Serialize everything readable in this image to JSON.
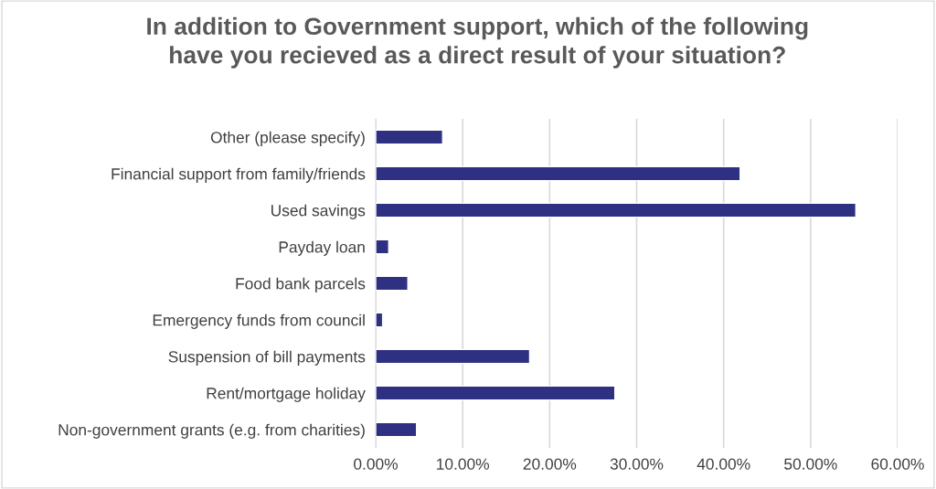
{
  "chart_data": {
    "type": "bar",
    "orientation": "horizontal",
    "title": "In addition to Government support, which of the following\nhave you recieved as a direct result of your situation?",
    "categories": [
      "Other (please specify)",
      "Financial support from family/friends",
      "Used savings",
      "Payday loan",
      "Food bank parcels",
      "Emergency funds from council",
      "Suspension of bill payments",
      "Rent/mortgage holiday",
      "Non-government grants (e.g. from charities)"
    ],
    "values": [
      7.7,
      41.9,
      55.2,
      1.5,
      3.7,
      0.8,
      17.7,
      27.5,
      4.7
    ],
    "color": "#2e3081",
    "xlim": [
      0,
      60
    ],
    "xticks": [
      {
        "value": 0,
        "label": "0.00%"
      },
      {
        "value": 10,
        "label": "10.00%"
      },
      {
        "value": 20,
        "label": "20.00%"
      },
      {
        "value": 30,
        "label": "30.00%"
      },
      {
        "value": 40,
        "label": "40.00%"
      },
      {
        "value": 50,
        "label": "50.00%"
      },
      {
        "value": 60,
        "label": "60.00%"
      }
    ],
    "grid": "x",
    "legend": false
  }
}
